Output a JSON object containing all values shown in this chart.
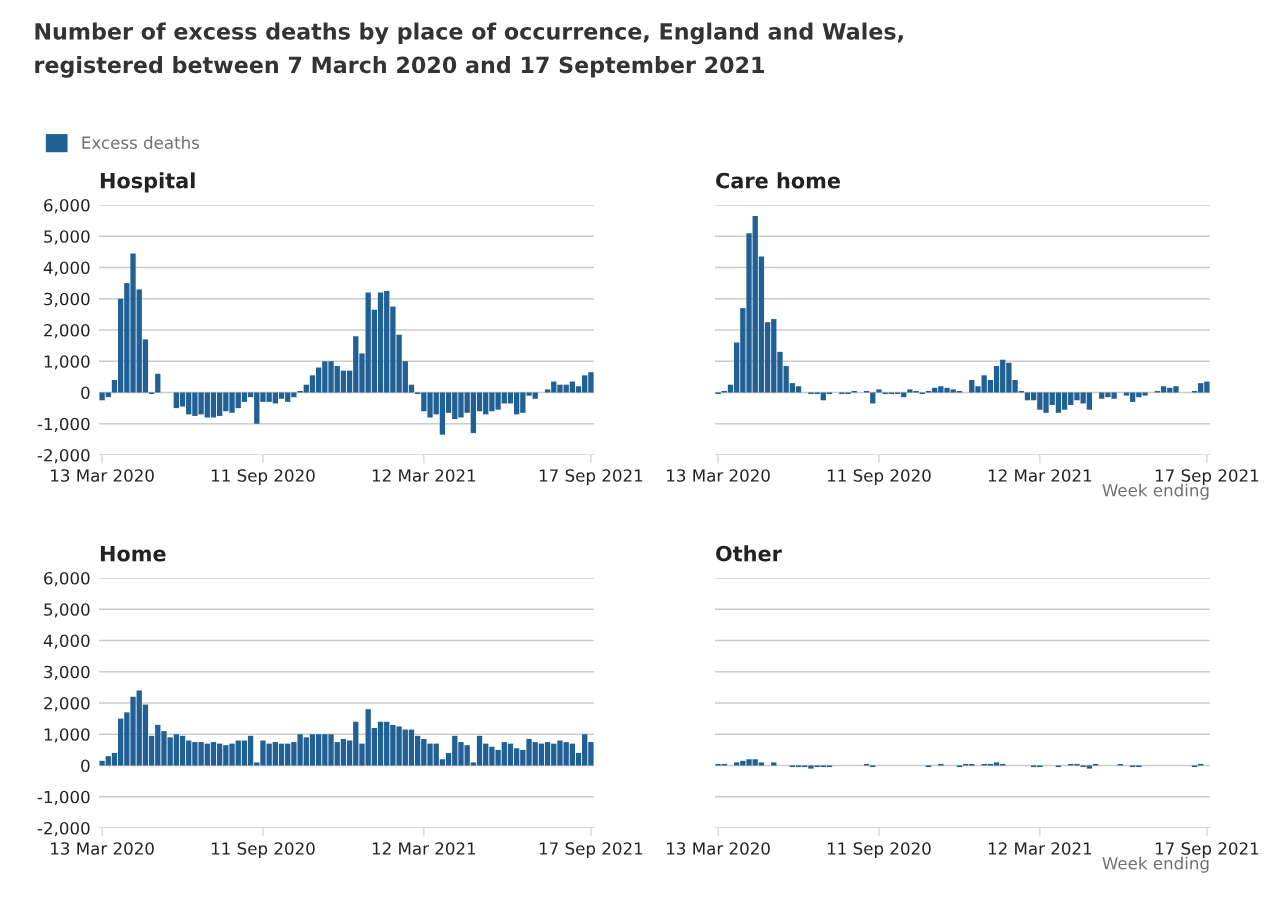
{
  "chart_data": [
    {
      "type": "bar",
      "title": "Number of excess deaths by place of occurrence, England and Wales,\nregistered between 7 March 2020 and 17 September 2021",
      "subtitle": "Hospital",
      "legend": "top left",
      "grid": "y",
      "tick_labels": "xy",
      "categories": [
        "13 Mar 2020",
        null,
        null,
        null,
        null,
        null,
        null,
        null,
        null,
        null,
        null,
        null,
        null,
        null,
        null,
        null,
        null,
        null,
        null,
        null,
        null,
        null,
        null,
        null,
        null,
        null,
        "11 Sep 2020",
        null,
        null,
        null,
        null,
        null,
        null,
        null,
        null,
        null,
        null,
        null,
        null,
        null,
        null,
        null,
        null,
        null,
        null,
        null,
        null,
        null,
        null,
        null,
        null,
        null,
        "12 Mar 2021",
        null,
        null,
        null,
        null,
        null,
        null,
        null,
        null,
        null,
        null,
        null,
        null,
        null,
        null,
        null,
        null,
        null,
        null,
        null,
        null,
        null,
        null,
        null,
        null,
        null,
        null,
        "17 Sep 2021"
      ],
      "ylim": [
        -2000,
        6000
      ],
      "yticks": [
        {
          "value": -2000,
          "label": "-2,000"
        },
        {
          "value": -1000,
          "label": "-1,000"
        },
        0,
        {
          "value": 1000,
          "label": "1,000"
        },
        {
          "value": 2000,
          "label": "2,000"
        },
        {
          "value": 3000,
          "label": "3,000"
        },
        {
          "value": 4000,
          "label": "4,000"
        },
        {
          "value": 5000,
          "label": "5,000"
        },
        {
          "value": 6000,
          "label": "6,000"
        }
      ],
      "series": [
        {
          "name": "Excess deaths",
          "color": "#206095",
          "values": [
            -250,
            -150,
            400,
            3000,
            3500,
            4450,
            3300,
            1700,
            -50,
            600,
            0,
            0,
            -500,
            -450,
            -700,
            -750,
            -700,
            -800,
            -800,
            -750,
            -600,
            -650,
            -500,
            -300,
            -150,
            -1000,
            -300,
            -300,
            -350,
            -200,
            -300,
            -150,
            50,
            250,
            550,
            800,
            1000,
            1000,
            850,
            700,
            700,
            1800,
            1250,
            3200,
            2650,
            3200,
            3250,
            2750,
            1850,
            1000,
            250,
            -50,
            -600,
            -800,
            -700,
            -1350,
            -650,
            -850,
            -800,
            -650,
            -1300,
            -600,
            -700,
            -600,
            -550,
            -350,
            -350,
            -700,
            -650,
            -100,
            -200,
            0,
            100,
            350,
            250,
            250,
            350,
            200,
            550,
            650
          ]
        }
      ]
    },
    {
      "type": "bar",
      "subtitle": "Care home",
      "xlabel": "Week ending",
      "grid": "y",
      "tick_labels": "x",
      "categories": [
        "13 Mar 2020",
        null,
        null,
        null,
        null,
        null,
        null,
        null,
        null,
        null,
        null,
        null,
        null,
        null,
        null,
        null,
        null,
        null,
        null,
        null,
        null,
        null,
        null,
        null,
        null,
        null,
        "11 Sep 2020",
        null,
        null,
        null,
        null,
        null,
        null,
        null,
        null,
        null,
        null,
        null,
        null,
        null,
        null,
        null,
        null,
        null,
        null,
        null,
        null,
        null,
        null,
        null,
        null,
        null,
        "12 Mar 2021",
        null,
        null,
        null,
        null,
        null,
        null,
        null,
        null,
        null,
        null,
        null,
        null,
        null,
        null,
        null,
        null,
        null,
        null,
        null,
        null,
        null,
        null,
        null,
        null,
        null,
        null,
        "17 Sep 2021"
      ],
      "ylim": [
        -2000,
        6000
      ],
      "yticks": [
        {
          "value": -2000,
          "label": null
        },
        {
          "value": -1000,
          "label": null
        },
        {
          "value": 0,
          "label": null
        },
        {
          "value": 1000,
          "label": null
        },
        {
          "value": 2000,
          "label": null
        },
        {
          "value": 3000,
          "label": null
        },
        {
          "value": 4000,
          "label": null
        },
        {
          "value": 5000,
          "label": null
        },
        {
          "value": 6000,
          "label": null
        }
      ],
      "series": [
        {
          "color": "#206095",
          "values": [
            -50,
            50,
            250,
            1600,
            2700,
            5100,
            5650,
            4350,
            2250,
            2350,
            1300,
            850,
            300,
            200,
            0,
            -50,
            -50,
            -250,
            -50,
            0,
            -50,
            -50,
            50,
            0,
            50,
            -350,
            100,
            -50,
            -50,
            -50,
            -150,
            100,
            50,
            -50,
            50,
            150,
            200,
            150,
            100,
            50,
            0,
            400,
            200,
            550,
            400,
            850,
            1050,
            950,
            400,
            50,
            -250,
            -250,
            -550,
            -650,
            -400,
            -650,
            -550,
            -400,
            -250,
            -350,
            -550,
            0,
            -200,
            -150,
            -200,
            0,
            -100,
            -300,
            -150,
            -100,
            0,
            50,
            200,
            150,
            200,
            0,
            0,
            50,
            300,
            350
          ]
        }
      ]
    },
    {
      "type": "bar",
      "subtitle": "Home",
      "grid": "y",
      "tick_labels": "xy",
      "categories": [
        "13 Mar 2020",
        null,
        null,
        null,
        null,
        null,
        null,
        null,
        null,
        null,
        null,
        null,
        null,
        null,
        null,
        null,
        null,
        null,
        null,
        null,
        null,
        null,
        null,
        null,
        null,
        null,
        "11 Sep 2020",
        null,
        null,
        null,
        null,
        null,
        null,
        null,
        null,
        null,
        null,
        null,
        null,
        null,
        null,
        null,
        null,
        null,
        null,
        null,
        null,
        null,
        null,
        null,
        null,
        null,
        "12 Mar 2021",
        null,
        null,
        null,
        null,
        null,
        null,
        null,
        null,
        null,
        null,
        null,
        null,
        null,
        null,
        null,
        null,
        null,
        null,
        null,
        null,
        null,
        null,
        null,
        null,
        null,
        null,
        "17 Sep 2021"
      ],
      "ylim": [
        -2000,
        6000
      ],
      "yticks": [
        {
          "value": -2000,
          "label": "-2,000"
        },
        {
          "value": -1000,
          "label": "-1,000"
        },
        0,
        {
          "value": 1000,
          "label": "1,000"
        },
        {
          "value": 2000,
          "label": "2,000"
        },
        {
          "value": 3000,
          "label": "3,000"
        },
        {
          "value": 4000,
          "label": "4,000"
        },
        {
          "value": 5000,
          "label": "5,000"
        },
        {
          "value": 6000,
          "label": "6,000"
        }
      ],
      "series": [
        {
          "color": "#206095",
          "values": [
            150,
            300,
            400,
            1500,
            1700,
            2200,
            2400,
            1950,
            950,
            1300,
            1100,
            900,
            1000,
            950,
            800,
            750,
            750,
            700,
            750,
            700,
            650,
            700,
            800,
            800,
            950,
            100,
            800,
            700,
            750,
            700,
            700,
            750,
            1000,
            900,
            1000,
            1000,
            1000,
            1000,
            750,
            850,
            800,
            1400,
            700,
            1800,
            1200,
            1400,
            1400,
            1300,
            1250,
            1150,
            1150,
            950,
            850,
            700,
            700,
            200,
            400,
            950,
            750,
            650,
            100,
            950,
            700,
            600,
            500,
            750,
            700,
            550,
            500,
            850,
            750,
            700,
            750,
            700,
            800,
            750,
            700,
            400,
            1000,
            750
          ]
        }
      ]
    },
    {
      "type": "bar",
      "subtitle": "Other",
      "xlabel": "Week ending",
      "grid": "y",
      "tick_labels": "x",
      "categories": [
        "13 Mar 2020",
        null,
        null,
        null,
        null,
        null,
        null,
        null,
        null,
        null,
        null,
        null,
        null,
        null,
        null,
        null,
        null,
        null,
        null,
        null,
        null,
        null,
        null,
        null,
        null,
        null,
        "11 Sep 2020",
        null,
        null,
        null,
        null,
        null,
        null,
        null,
        null,
        null,
        null,
        null,
        null,
        null,
        null,
        null,
        null,
        null,
        null,
        null,
        null,
        null,
        null,
        null,
        null,
        null,
        "12 Mar 2021",
        null,
        null,
        null,
        null,
        null,
        null,
        null,
        null,
        null,
        null,
        null,
        null,
        null,
        null,
        null,
        null,
        null,
        null,
        null,
        null,
        null,
        null,
        null,
        null,
        null,
        null,
        "17 Sep 2021"
      ],
      "ylim": [
        -2000,
        6000
      ],
      "yticks": [
        {
          "value": -2000,
          "label": null
        },
        {
          "value": -1000,
          "label": null
        },
        {
          "value": 0,
          "label": null
        },
        {
          "value": 1000,
          "label": null
        },
        {
          "value": 2000,
          "label": null
        },
        {
          "value": 3000,
          "label": null
        },
        {
          "value": 4000,
          "label": null
        },
        {
          "value": 5000,
          "label": null
        },
        {
          "value": 6000,
          "label": null
        }
      ],
      "series": [
        {
          "color": "#206095",
          "values": [
            50,
            50,
            0,
            100,
            150,
            200,
            200,
            100,
            0,
            100,
            0,
            0,
            -50,
            -50,
            -50,
            -100,
            -50,
            -50,
            -50,
            0,
            0,
            0,
            0,
            0,
            50,
            -50,
            0,
            0,
            0,
            0,
            0,
            0,
            0,
            0,
            -50,
            0,
            50,
            0,
            0,
            -50,
            50,
            50,
            0,
            50,
            50,
            100,
            50,
            0,
            0,
            0,
            0,
            -50,
            -50,
            0,
            0,
            -50,
            0,
            50,
            50,
            -50,
            -100,
            50,
            0,
            0,
            0,
            50,
            0,
            -50,
            -50,
            0,
            0,
            0,
            0,
            0,
            0,
            0,
            0,
            -50,
            50,
            0
          ]
        }
      ]
    }
  ]
}
